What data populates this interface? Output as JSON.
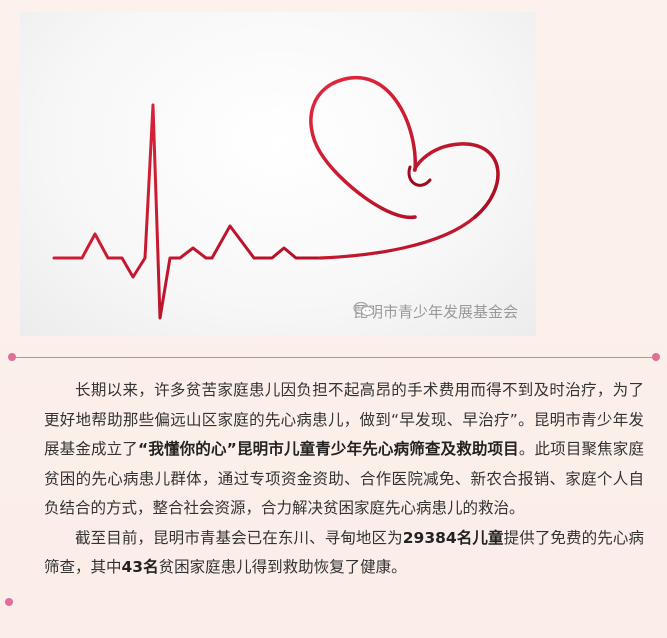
{
  "image": {
    "watermark_text": "昆明市青少年发展基金会",
    "colors": {
      "ribbon": "#c8102e",
      "watermark": "#9a9a9a"
    }
  },
  "divider": {
    "color": "#e17aa0",
    "dot_color": "#de6f98"
  },
  "article": {
    "p1_a": "长期以来，许多贫苦家庭患儿因负担不起高昂的手术费用而得不到及时治疗，为了更好地帮助那些偏远山区家庭的先心病患儿，做到“早发现、早治疗”。昆明市青少年发展基金成立了",
    "p1_bold": "“我懂你的心”昆明市儿童青少年先心病筛查及救助项目",
    "p1_b": "。此项目聚焦家庭贫困的先心病患儿群体，通过专项资金资助、合作医院减免、新农合报销、家庭个人自负结合的方式，整合社会资源，合力解决贫困家庭先心病患儿的救治。",
    "p2_a": "截至目前，昆明市青基会已在东川、寻甸地区为",
    "p2_bold1": "29384名儿童",
    "p2_b": "提供了免费的先心病筛查，其中",
    "p2_bold2": "43名",
    "p2_c": "贫困家庭患儿得到救助恢复了健康。"
  }
}
